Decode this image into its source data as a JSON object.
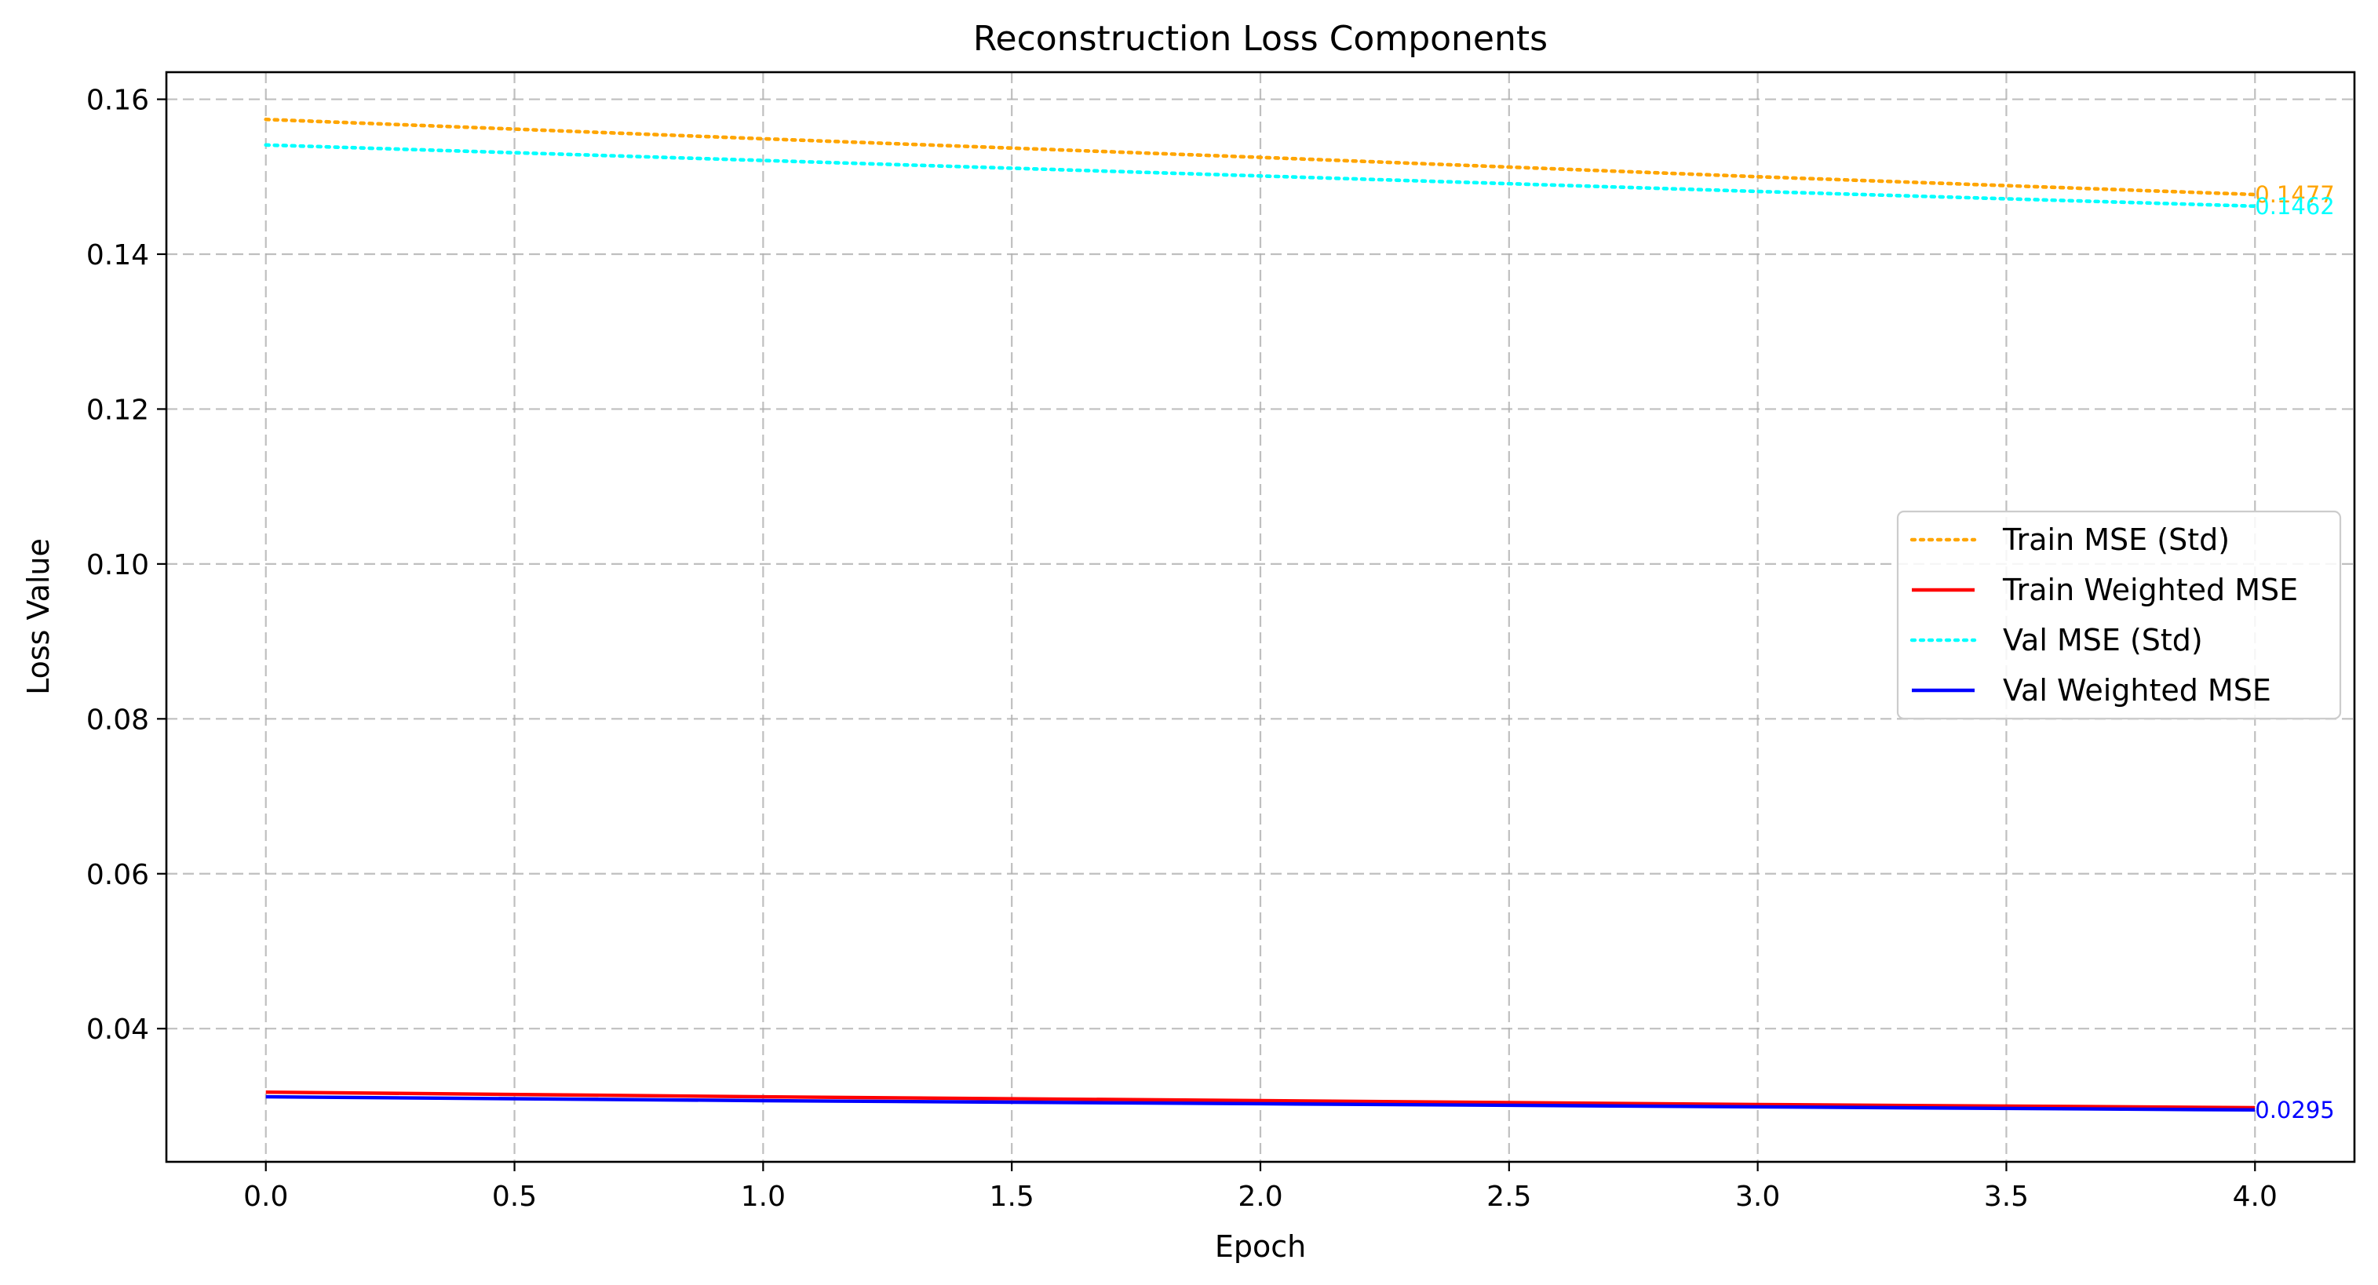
{
  "chart_data": {
    "type": "line",
    "title": "Reconstruction Loss Components",
    "xlabel": "Epoch",
    "ylabel": "Loss Value",
    "xlim": [
      -0.2,
      4.2
    ],
    "ylim": [
      0.0228,
      0.1635
    ],
    "xticks": [
      0.0,
      0.5,
      1.0,
      1.5,
      2.0,
      2.5,
      3.0,
      3.5,
      4.0
    ],
    "xtick_labels": [
      "0.0",
      "0.5",
      "1.0",
      "1.5",
      "2.0",
      "2.5",
      "3.0",
      "3.5",
      "4.0"
    ],
    "yticks": [
      0.04,
      0.06,
      0.08,
      0.1,
      0.12,
      0.14,
      0.16
    ],
    "ytick_labels": [
      "0.04",
      "0.06",
      "0.08",
      "0.10",
      "0.12",
      "0.14",
      "0.16"
    ],
    "grid": true,
    "legend_position": "center-right",
    "x": [
      0,
      1,
      2,
      3,
      4
    ],
    "series": [
      {
        "name": "Train MSE (Std)",
        "color": "#ffa500",
        "style": "dotted",
        "values": [
          0.1574,
          0.1549,
          0.1525,
          0.15,
          0.1477
        ],
        "end_label": "0.1477"
      },
      {
        "name": "Train Weighted MSE",
        "color": "#ff0000",
        "style": "solid",
        "values": [
          0.0318,
          0.0312,
          0.0307,
          0.0302,
          0.0298
        ],
        "end_label": ""
      },
      {
        "name": "Val MSE (Std)",
        "color": "#00ffff",
        "style": "dotted",
        "values": [
          0.1541,
          0.1521,
          0.1501,
          0.1481,
          0.1462
        ],
        "end_label": "0.1462"
      },
      {
        "name": "Val Weighted MSE",
        "color": "#0000ff",
        "style": "solid",
        "values": [
          0.0312,
          0.0307,
          0.0303,
          0.0299,
          0.0295
        ],
        "end_label": "0.0295"
      }
    ]
  }
}
